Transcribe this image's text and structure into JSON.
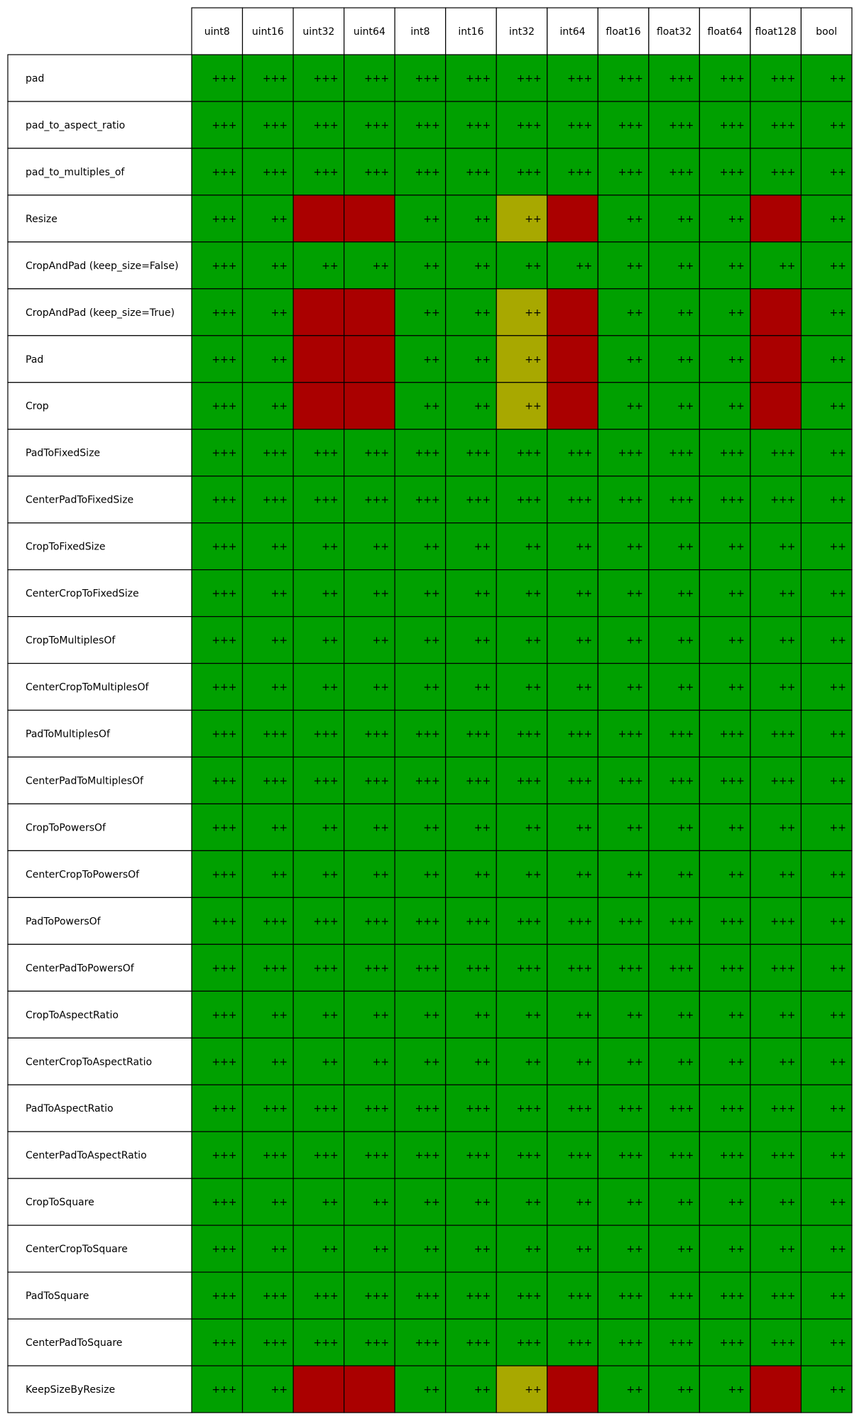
{
  "chart_data": {
    "type": "table",
    "columns": [
      "uint8",
      "uint16",
      "uint32",
      "uint64",
      "int8",
      "int16",
      "int32",
      "int64",
      "float16",
      "float32",
      "float64",
      "float128",
      "bool"
    ],
    "rows": [
      {
        "label": "pad",
        "cells": [
          "+++",
          "+++",
          "+++",
          "+++",
          "+++",
          "+++",
          "+++",
          "+++",
          "+++",
          "+++",
          "+++",
          "+++",
          "++"
        ]
      },
      {
        "label": "pad_to_aspect_ratio",
        "cells": [
          "+++",
          "+++",
          "+++",
          "+++",
          "+++",
          "+++",
          "+++",
          "+++",
          "+++",
          "+++",
          "+++",
          "+++",
          "++"
        ]
      },
      {
        "label": "pad_to_multiples_of",
        "cells": [
          "+++",
          "+++",
          "+++",
          "+++",
          "+++",
          "+++",
          "+++",
          "+++",
          "+++",
          "+++",
          "+++",
          "+++",
          "++"
        ]
      },
      {
        "label": "Resize",
        "cells": [
          "+++",
          "++",
          "",
          "",
          "++",
          "++",
          "++",
          "",
          "++",
          "++",
          "++",
          "",
          "++"
        ],
        "status": [
          "g",
          "g",
          "r",
          "r",
          "g",
          "g",
          "y",
          "r",
          "g",
          "g",
          "g",
          "r",
          "g"
        ]
      },
      {
        "label": "CropAndPad (keep_size=False)",
        "cells": [
          "+++",
          "++",
          "++",
          "++",
          "++",
          "++",
          "++",
          "++",
          "++",
          "++",
          "++",
          "++",
          "++"
        ]
      },
      {
        "label": "CropAndPad (keep_size=True)",
        "cells": [
          "+++",
          "++",
          "",
          "",
          "++",
          "++",
          "++",
          "",
          "++",
          "++",
          "++",
          "",
          "++"
        ],
        "status": [
          "g",
          "g",
          "r",
          "r",
          "g",
          "g",
          "y",
          "r",
          "g",
          "g",
          "g",
          "r",
          "g"
        ]
      },
      {
        "label": "Pad",
        "cells": [
          "+++",
          "++",
          "",
          "",
          "++",
          "++",
          "++",
          "",
          "++",
          "++",
          "++",
          "",
          "++"
        ],
        "status": [
          "g",
          "g",
          "r",
          "r",
          "g",
          "g",
          "y",
          "r",
          "g",
          "g",
          "g",
          "r",
          "g"
        ]
      },
      {
        "label": "Crop",
        "cells": [
          "+++",
          "++",
          "",
          "",
          "++",
          "++",
          "++",
          "",
          "++",
          "++",
          "++",
          "",
          "++"
        ],
        "status": [
          "g",
          "g",
          "r",
          "r",
          "g",
          "g",
          "y",
          "r",
          "g",
          "g",
          "g",
          "r",
          "g"
        ]
      },
      {
        "label": "PadToFixedSize",
        "cells": [
          "+++",
          "+++",
          "+++",
          "+++",
          "+++",
          "+++",
          "+++",
          "+++",
          "+++",
          "+++",
          "+++",
          "+++",
          "++"
        ]
      },
      {
        "label": "CenterPadToFixedSize",
        "cells": [
          "+++",
          "+++",
          "+++",
          "+++",
          "+++",
          "+++",
          "+++",
          "+++",
          "+++",
          "+++",
          "+++",
          "+++",
          "++"
        ]
      },
      {
        "label": "CropToFixedSize",
        "cells": [
          "+++",
          "++",
          "++",
          "++",
          "++",
          "++",
          "++",
          "++",
          "++",
          "++",
          "++",
          "++",
          "++"
        ]
      },
      {
        "label": "CenterCropToFixedSize",
        "cells": [
          "+++",
          "++",
          "++",
          "++",
          "++",
          "++",
          "++",
          "++",
          "++",
          "++",
          "++",
          "++",
          "++"
        ]
      },
      {
        "label": "CropToMultiplesOf",
        "cells": [
          "+++",
          "++",
          "++",
          "++",
          "++",
          "++",
          "++",
          "++",
          "++",
          "++",
          "++",
          "++",
          "++"
        ]
      },
      {
        "label": "CenterCropToMultiplesOf",
        "cells": [
          "+++",
          "++",
          "++",
          "++",
          "++",
          "++",
          "++",
          "++",
          "++",
          "++",
          "++",
          "++",
          "++"
        ]
      },
      {
        "label": "PadToMultiplesOf",
        "cells": [
          "+++",
          "+++",
          "+++",
          "+++",
          "+++",
          "+++",
          "+++",
          "+++",
          "+++",
          "+++",
          "+++",
          "+++",
          "++"
        ]
      },
      {
        "label": "CenterPadToMultiplesOf",
        "cells": [
          "+++",
          "+++",
          "+++",
          "+++",
          "+++",
          "+++",
          "+++",
          "+++",
          "+++",
          "+++",
          "+++",
          "+++",
          "++"
        ]
      },
      {
        "label": "CropToPowersOf",
        "cells": [
          "+++",
          "++",
          "++",
          "++",
          "++",
          "++",
          "++",
          "++",
          "++",
          "++",
          "++",
          "++",
          "++"
        ]
      },
      {
        "label": "CenterCropToPowersOf",
        "cells": [
          "+++",
          "++",
          "++",
          "++",
          "++",
          "++",
          "++",
          "++",
          "++",
          "++",
          "++",
          "++",
          "++"
        ]
      },
      {
        "label": "PadToPowersOf",
        "cells": [
          "+++",
          "+++",
          "+++",
          "+++",
          "+++",
          "+++",
          "+++",
          "+++",
          "+++",
          "+++",
          "+++",
          "+++",
          "++"
        ]
      },
      {
        "label": "CenterPadToPowersOf",
        "cells": [
          "+++",
          "+++",
          "+++",
          "+++",
          "+++",
          "+++",
          "+++",
          "+++",
          "+++",
          "+++",
          "+++",
          "+++",
          "++"
        ]
      },
      {
        "label": "CropToAspectRatio",
        "cells": [
          "+++",
          "++",
          "++",
          "++",
          "++",
          "++",
          "++",
          "++",
          "++",
          "++",
          "++",
          "++",
          "++"
        ]
      },
      {
        "label": "CenterCropToAspectRatio",
        "cells": [
          "+++",
          "++",
          "++",
          "++",
          "++",
          "++",
          "++",
          "++",
          "++",
          "++",
          "++",
          "++",
          "++"
        ]
      },
      {
        "label": "PadToAspectRatio",
        "cells": [
          "+++",
          "+++",
          "+++",
          "+++",
          "+++",
          "+++",
          "+++",
          "+++",
          "+++",
          "+++",
          "+++",
          "+++",
          "++"
        ]
      },
      {
        "label": "CenterPadToAspectRatio",
        "cells": [
          "+++",
          "+++",
          "+++",
          "+++",
          "+++",
          "+++",
          "+++",
          "+++",
          "+++",
          "+++",
          "+++",
          "+++",
          "++"
        ]
      },
      {
        "label": "CropToSquare",
        "cells": [
          "+++",
          "++",
          "++",
          "++",
          "++",
          "++",
          "++",
          "++",
          "++",
          "++",
          "++",
          "++",
          "++"
        ]
      },
      {
        "label": "CenterCropToSquare",
        "cells": [
          "+++",
          "++",
          "++",
          "++",
          "++",
          "++",
          "++",
          "++",
          "++",
          "++",
          "++",
          "++",
          "++"
        ]
      },
      {
        "label": "PadToSquare",
        "cells": [
          "+++",
          "+++",
          "+++",
          "+++",
          "+++",
          "+++",
          "+++",
          "+++",
          "+++",
          "+++",
          "+++",
          "+++",
          "++"
        ]
      },
      {
        "label": "CenterPadToSquare",
        "cells": [
          "+++",
          "+++",
          "+++",
          "+++",
          "+++",
          "+++",
          "+++",
          "+++",
          "+++",
          "+++",
          "+++",
          "+++",
          "++"
        ]
      },
      {
        "label": "KeepSizeByResize",
        "cells": [
          "+++",
          "++",
          "",
          "",
          "++",
          "++",
          "++",
          "",
          "++",
          "++",
          "++",
          "",
          "++"
        ],
        "status": [
          "g",
          "g",
          "r",
          "r",
          "g",
          "g",
          "y",
          "r",
          "g",
          "g",
          "g",
          "r",
          "g"
        ]
      }
    ],
    "status_colors": {
      "g": "#00a000",
      "y": "#a8a800",
      "r": "#aa0000"
    },
    "default_status": "g",
    "grid": true
  }
}
